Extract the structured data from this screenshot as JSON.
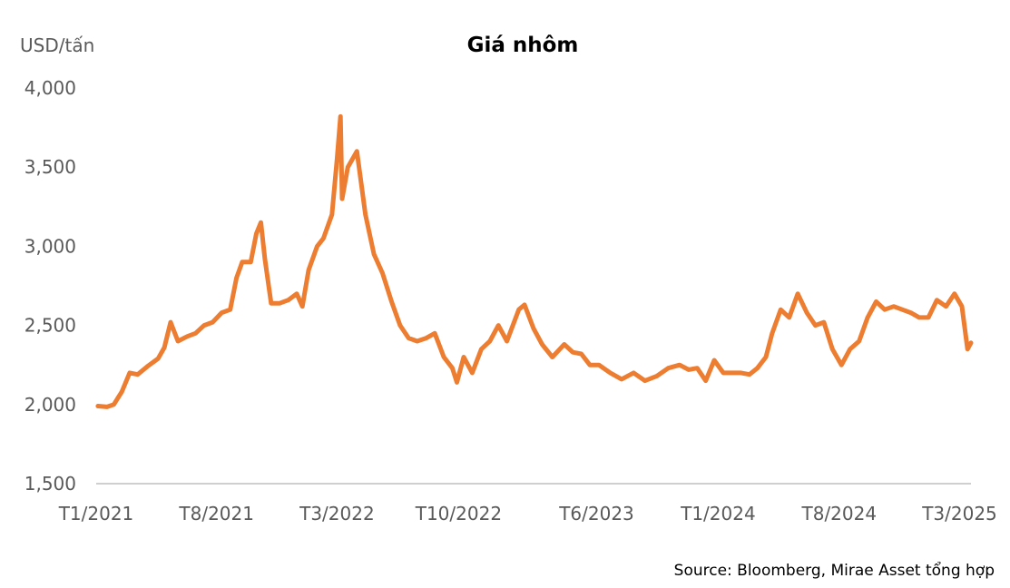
{
  "chart_data": {
    "type": "line",
    "title": "Giá nhôm",
    "ylabel": "USD/tấn",
    "xlabel": "",
    "ylim": [
      1500,
      4000
    ],
    "yticks": [
      1500,
      2000,
      2500,
      3000,
      3500,
      4000
    ],
    "ytick_labels": [
      "1,500",
      "2,000",
      "2,500",
      "3,000",
      "3,500",
      "4,000"
    ],
    "xlim": [
      "2021-01-01",
      "2025-03-21"
    ],
    "xtick_labels": [
      "T1/2021",
      "T8/2021",
      "T3/2022",
      "T10/2022",
      "T6/2023",
      "T1/2024",
      "T8/2024",
      "T3/2025"
    ],
    "xtick_dates": [
      "2021-01-01",
      "2021-08-01",
      "2022-03-01",
      "2022-10-01",
      "2023-06-01",
      "2024-01-01",
      "2024-08-01",
      "2025-03-01"
    ],
    "grid": false,
    "legend": "none",
    "series": [
      {
        "color": "#ed7d31",
        "points": [
          [
            "2021-01-04",
            1990
          ],
          [
            "2021-01-20",
            1985
          ],
          [
            "2021-02-01",
            2000
          ],
          [
            "2021-02-15",
            2080
          ],
          [
            "2021-03-01",
            2200
          ],
          [
            "2021-03-15",
            2190
          ],
          [
            "2021-04-01",
            2240
          ],
          [
            "2021-04-20",
            2290
          ],
          [
            "2021-05-01",
            2360
          ],
          [
            "2021-05-12",
            2520
          ],
          [
            "2021-05-25",
            2400
          ],
          [
            "2021-06-10",
            2430
          ],
          [
            "2021-06-25",
            2450
          ],
          [
            "2021-07-10",
            2500
          ],
          [
            "2021-07-25",
            2520
          ],
          [
            "2021-08-10",
            2580
          ],
          [
            "2021-08-25",
            2600
          ],
          [
            "2021-09-05",
            2800
          ],
          [
            "2021-09-15",
            2900
          ],
          [
            "2021-09-30",
            2900
          ],
          [
            "2021-10-10",
            3080
          ],
          [
            "2021-10-18",
            3150
          ],
          [
            "2021-10-25",
            2920
          ],
          [
            "2021-11-05",
            2640
          ],
          [
            "2021-11-20",
            2640
          ],
          [
            "2021-12-05",
            2660
          ],
          [
            "2021-12-20",
            2700
          ],
          [
            "2021-12-30",
            2620
          ],
          [
            "2022-01-10",
            2850
          ],
          [
            "2022-01-25",
            3000
          ],
          [
            "2022-02-05",
            3050
          ],
          [
            "2022-02-20",
            3200
          ],
          [
            "2022-03-01",
            3550
          ],
          [
            "2022-03-07",
            3820
          ],
          [
            "2022-03-10",
            3300
          ],
          [
            "2022-03-20",
            3500
          ],
          [
            "2022-04-05",
            3600
          ],
          [
            "2022-04-20",
            3200
          ],
          [
            "2022-05-05",
            2950
          ],
          [
            "2022-05-20",
            2830
          ],
          [
            "2022-06-05",
            2650
          ],
          [
            "2022-06-20",
            2500
          ],
          [
            "2022-07-05",
            2420
          ],
          [
            "2022-07-20",
            2400
          ],
          [
            "2022-08-05",
            2420
          ],
          [
            "2022-08-20",
            2450
          ],
          [
            "2022-09-05",
            2300
          ],
          [
            "2022-09-20",
            2230
          ],
          [
            "2022-09-28",
            2140
          ],
          [
            "2022-10-10",
            2300
          ],
          [
            "2022-10-25",
            2200
          ],
          [
            "2022-11-10",
            2350
          ],
          [
            "2022-11-25",
            2400
          ],
          [
            "2022-12-10",
            2500
          ],
          [
            "2022-12-25",
            2400
          ],
          [
            "2023-01-15",
            2600
          ],
          [
            "2023-01-25",
            2630
          ],
          [
            "2023-02-10",
            2480
          ],
          [
            "2023-02-25",
            2380
          ],
          [
            "2023-03-15",
            2300
          ],
          [
            "2023-04-05",
            2380
          ],
          [
            "2023-04-20",
            2330
          ],
          [
            "2023-05-05",
            2320
          ],
          [
            "2023-05-20",
            2250
          ],
          [
            "2023-06-05",
            2250
          ],
          [
            "2023-06-25",
            2200
          ],
          [
            "2023-07-15",
            2160
          ],
          [
            "2023-08-05",
            2200
          ],
          [
            "2023-08-25",
            2150
          ],
          [
            "2023-09-15",
            2180
          ],
          [
            "2023-10-05",
            2230
          ],
          [
            "2023-10-25",
            2250
          ],
          [
            "2023-11-10",
            2220
          ],
          [
            "2023-11-25",
            2230
          ],
          [
            "2023-12-10",
            2150
          ],
          [
            "2023-12-25",
            2280
          ],
          [
            "2024-01-10",
            2200
          ],
          [
            "2024-01-25",
            2200
          ],
          [
            "2024-02-10",
            2200
          ],
          [
            "2024-02-25",
            2190
          ],
          [
            "2024-03-10",
            2230
          ],
          [
            "2024-03-25",
            2300
          ],
          [
            "2024-04-05",
            2450
          ],
          [
            "2024-04-20",
            2600
          ],
          [
            "2024-05-05",
            2550
          ],
          [
            "2024-05-20",
            2700
          ],
          [
            "2024-06-05",
            2580
          ],
          [
            "2024-06-20",
            2500
          ],
          [
            "2024-07-05",
            2520
          ],
          [
            "2024-07-20",
            2350
          ],
          [
            "2024-08-05",
            2250
          ],
          [
            "2024-08-20",
            2350
          ],
          [
            "2024-09-05",
            2400
          ],
          [
            "2024-09-20",
            2550
          ],
          [
            "2024-10-05",
            2650
          ],
          [
            "2024-10-20",
            2600
          ],
          [
            "2024-11-05",
            2620
          ],
          [
            "2024-11-20",
            2600
          ],
          [
            "2024-12-05",
            2580
          ],
          [
            "2024-12-20",
            2550
          ],
          [
            "2025-01-05",
            2550
          ],
          [
            "2025-01-20",
            2660
          ],
          [
            "2025-02-05",
            2620
          ],
          [
            "2025-02-20",
            2700
          ],
          [
            "2025-03-05",
            2620
          ],
          [
            "2025-03-15",
            2350
          ],
          [
            "2025-03-21",
            2390
          ]
        ]
      }
    ],
    "source": "Source: Bloomberg, Mirae Asset tổng hợp"
  }
}
